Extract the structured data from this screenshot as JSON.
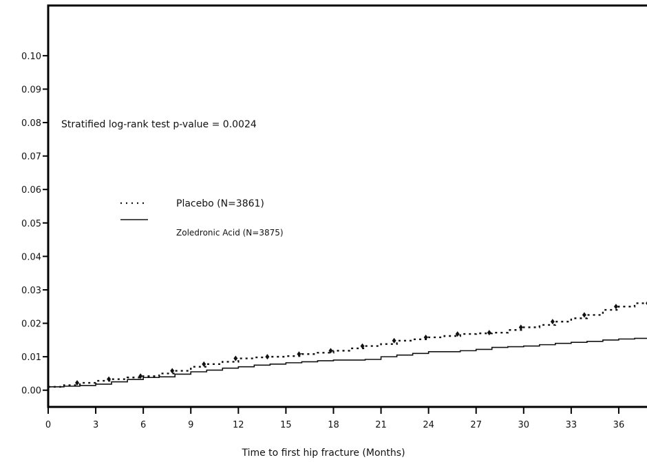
{
  "chart_data": {
    "type": "line",
    "title": "",
    "xlabel": "Time to first hip fracture (Months)",
    "ylabel": "",
    "xlim": [
      0,
      38
    ],
    "ylim": [
      -0.005,
      0.115
    ],
    "x_ticks": [
      0,
      3,
      6,
      9,
      12,
      15,
      18,
      21,
      24,
      27,
      30,
      33,
      36
    ],
    "y_ticks": [
      0.0,
      0.01,
      0.02,
      0.03,
      0.04,
      0.05,
      0.06,
      0.07,
      0.08,
      0.09,
      0.1
    ],
    "y_tick_labels": [
      "0.00",
      "0.01",
      "0.02",
      "0.03",
      "0.04",
      "0.05",
      "0.06",
      "0.07",
      "0.08",
      "0.09",
      "0.10"
    ],
    "annotation": "Stratified log-rank test p-value = 0.0024",
    "legend_position": "center-left",
    "grid": false,
    "series": [
      {
        "name": "Placebo (N=3861)",
        "style": "dotted",
        "x": [
          0,
          1,
          2,
          3,
          4,
          5,
          6,
          7,
          8,
          9,
          10,
          11,
          12,
          13,
          14,
          15,
          16,
          17,
          18,
          19,
          20,
          21,
          22,
          23,
          24,
          25,
          26,
          27,
          28,
          29,
          30,
          31,
          32,
          33,
          34,
          35,
          36,
          37,
          38
        ],
        "values": [
          0.001,
          0.0015,
          0.0022,
          0.0028,
          0.0033,
          0.0038,
          0.0042,
          0.005,
          0.0058,
          0.007,
          0.0078,
          0.0085,
          0.0095,
          0.0098,
          0.01,
          0.0102,
          0.0108,
          0.0112,
          0.0118,
          0.0125,
          0.0132,
          0.0138,
          0.0148,
          0.0152,
          0.0158,
          0.0162,
          0.0168,
          0.017,
          0.0172,
          0.018,
          0.0188,
          0.0195,
          0.0205,
          0.0215,
          0.0225,
          0.024,
          0.025,
          0.026,
          0.026
        ]
      },
      {
        "name": "Zoledronic Acid (N=3875)",
        "style": "solid",
        "x": [
          0,
          1,
          2,
          3,
          4,
          5,
          6,
          7,
          8,
          9,
          10,
          11,
          12,
          13,
          14,
          15,
          16,
          17,
          18,
          19,
          20,
          21,
          22,
          23,
          24,
          25,
          26,
          27,
          28,
          29,
          30,
          31,
          32,
          33,
          34,
          35,
          36,
          37,
          38
        ],
        "values": [
          0.001,
          0.0012,
          0.0014,
          0.0018,
          0.0025,
          0.0032,
          0.0038,
          0.004,
          0.0048,
          0.0055,
          0.006,
          0.0066,
          0.007,
          0.0075,
          0.0078,
          0.0082,
          0.0085,
          0.0088,
          0.009,
          0.009,
          0.0092,
          0.01,
          0.0105,
          0.011,
          0.0115,
          0.0115,
          0.0118,
          0.0122,
          0.0128,
          0.013,
          0.0132,
          0.0136,
          0.014,
          0.0143,
          0.0146,
          0.015,
          0.0153,
          0.0155,
          0.0155
        ]
      }
    ],
    "legend": [
      {
        "label": "Placebo (N=3861)",
        "style": "dotted"
      },
      {
        "label": "Zoledronic Acid (N=3875)",
        "style": "solid"
      }
    ]
  }
}
